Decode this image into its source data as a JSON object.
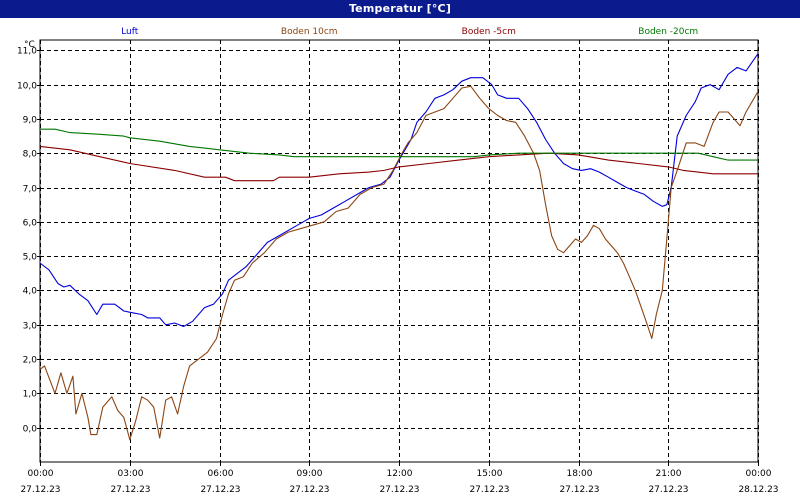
{
  "window": {
    "title": "Temperatur [°C]"
  },
  "chart_data": {
    "type": "line",
    "title": "Temperatur [°C]",
    "ylabel": "°C",
    "xlabel": "",
    "ylim": [
      -1.0,
      11.3
    ],
    "xlim": [
      0,
      24
    ],
    "grid": true,
    "legend_position": "top",
    "y_ticks": [
      0,
      1,
      2,
      3,
      4,
      5,
      6,
      7,
      8,
      9,
      10,
      11
    ],
    "y_tick_labels": [
      "0,0",
      "1,0",
      "2,0",
      "3,0",
      "4,0",
      "5,0",
      "6,0",
      "7,0",
      "8,0",
      "9,0",
      "10,0",
      "11,0"
    ],
    "x_ticks": [
      {
        "x": 0,
        "time": "00:00",
        "date": "27.12.23"
      },
      {
        "x": 3,
        "time": "03:00",
        "date": "27.12.23"
      },
      {
        "x": 6,
        "time": "06:00",
        "date": "27.12.23"
      },
      {
        "x": 9,
        "time": "09:00",
        "date": "27.12.23"
      },
      {
        "x": 12,
        "time": "12:00",
        "date": "27.12.23"
      },
      {
        "x": 15,
        "time": "15:00",
        "date": "27.12.23"
      },
      {
        "x": 18,
        "time": "18:00",
        "date": "27.12.23"
      },
      {
        "x": 21,
        "time": "21:00",
        "date": "27.12.23"
      },
      {
        "x": 24,
        "time": "00:00",
        "date": "28.12.23"
      }
    ],
    "series": [
      {
        "name": "Luft",
        "color": "#0000dd",
        "points": [
          [
            0,
            4.8
          ],
          [
            0.3,
            4.6
          ],
          [
            0.6,
            4.2
          ],
          [
            0.8,
            4.1
          ],
          [
            1.0,
            4.15
          ],
          [
            1.3,
            3.9
          ],
          [
            1.6,
            3.7
          ],
          [
            1.9,
            3.3
          ],
          [
            2.1,
            3.6
          ],
          [
            2.5,
            3.6
          ],
          [
            2.8,
            3.4
          ],
          [
            3.1,
            3.35
          ],
          [
            3.4,
            3.3
          ],
          [
            3.6,
            3.2
          ],
          [
            4.0,
            3.2
          ],
          [
            4.2,
            3.0
          ],
          [
            4.5,
            3.05
          ],
          [
            4.8,
            2.95
          ],
          [
            5.1,
            3.1
          ],
          [
            5.5,
            3.5
          ],
          [
            5.8,
            3.6
          ],
          [
            6.1,
            3.9
          ],
          [
            6.3,
            4.3
          ],
          [
            6.6,
            4.5
          ],
          [
            6.9,
            4.7
          ],
          [
            7.2,
            5.0
          ],
          [
            7.6,
            5.4
          ],
          [
            8.0,
            5.6
          ],
          [
            8.4,
            5.8
          ],
          [
            8.8,
            6.0
          ],
          [
            9.0,
            6.1
          ],
          [
            9.4,
            6.2
          ],
          [
            9.8,
            6.4
          ],
          [
            10.2,
            6.6
          ],
          [
            10.6,
            6.8
          ],
          [
            11.0,
            7.0
          ],
          [
            11.4,
            7.1
          ],
          [
            11.7,
            7.3
          ],
          [
            12.0,
            7.8
          ],
          [
            12.2,
            8.1
          ],
          [
            12.4,
            8.4
          ],
          [
            12.6,
            8.9
          ],
          [
            12.9,
            9.2
          ],
          [
            13.2,
            9.6
          ],
          [
            13.5,
            9.7
          ],
          [
            13.8,
            9.85
          ],
          [
            14.1,
            10.1
          ],
          [
            14.4,
            10.2
          ],
          [
            14.8,
            10.2
          ],
          [
            15.1,
            10.0
          ],
          [
            15.3,
            9.7
          ],
          [
            15.6,
            9.6
          ],
          [
            16.0,
            9.6
          ],
          [
            16.3,
            9.3
          ],
          [
            16.6,
            8.9
          ],
          [
            16.9,
            8.4
          ],
          [
            17.2,
            8.0
          ],
          [
            17.5,
            7.7
          ],
          [
            17.8,
            7.55
          ],
          [
            18.1,
            7.5
          ],
          [
            18.4,
            7.55
          ],
          [
            18.7,
            7.45
          ],
          [
            19.0,
            7.3
          ],
          [
            19.3,
            7.15
          ],
          [
            19.6,
            7.0
          ],
          [
            19.9,
            6.9
          ],
          [
            20.2,
            6.8
          ],
          [
            20.5,
            6.6
          ],
          [
            20.8,
            6.45
          ],
          [
            20.95,
            6.5
          ],
          [
            21.1,
            7.0
          ],
          [
            21.3,
            8.5
          ],
          [
            21.6,
            9.1
          ],
          [
            21.9,
            9.5
          ],
          [
            22.1,
            9.9
          ],
          [
            22.4,
            10.0
          ],
          [
            22.7,
            9.85
          ],
          [
            23.0,
            10.3
          ],
          [
            23.3,
            10.5
          ],
          [
            23.6,
            10.4
          ],
          [
            24,
            10.9
          ]
        ]
      },
      {
        "name": "Boden 10cm",
        "color": "#8b4513",
        "points": [
          [
            0,
            1.7
          ],
          [
            0.15,
            1.8
          ],
          [
            0.5,
            1.0
          ],
          [
            0.7,
            1.6
          ],
          [
            0.9,
            1.0
          ],
          [
            1.1,
            1.5
          ],
          [
            1.2,
            0.4
          ],
          [
            1.4,
            1.0
          ],
          [
            1.6,
            0.3
          ],
          [
            1.7,
            -0.2
          ],
          [
            1.9,
            -0.2
          ],
          [
            2.1,
            0.6
          ],
          [
            2.4,
            0.9
          ],
          [
            2.6,
            0.5
          ],
          [
            2.8,
            0.3
          ],
          [
            3.0,
            -0.35
          ],
          [
            3.2,
            0.2
          ],
          [
            3.4,
            0.9
          ],
          [
            3.6,
            0.8
          ],
          [
            3.8,
            0.6
          ],
          [
            4.0,
            -0.3
          ],
          [
            4.2,
            0.8
          ],
          [
            4.4,
            0.9
          ],
          [
            4.6,
            0.4
          ],
          [
            4.8,
            1.2
          ],
          [
            5.0,
            1.8
          ],
          [
            5.3,
            2.0
          ],
          [
            5.6,
            2.2
          ],
          [
            5.9,
            2.6
          ],
          [
            6.1,
            3.3
          ],
          [
            6.3,
            3.9
          ],
          [
            6.5,
            4.3
          ],
          [
            6.8,
            4.4
          ],
          [
            7.1,
            4.8
          ],
          [
            7.5,
            5.1
          ],
          [
            7.9,
            5.5
          ],
          [
            8.3,
            5.7
          ],
          [
            8.7,
            5.8
          ],
          [
            9.1,
            5.9
          ],
          [
            9.5,
            6.0
          ],
          [
            9.9,
            6.3
          ],
          [
            10.3,
            6.4
          ],
          [
            10.7,
            6.8
          ],
          [
            11.1,
            7.0
          ],
          [
            11.5,
            7.1
          ],
          [
            11.8,
            7.5
          ],
          [
            12.1,
            8.0
          ],
          [
            12.3,
            8.3
          ],
          [
            12.6,
            8.6
          ],
          [
            12.9,
            9.1
          ],
          [
            13.2,
            9.2
          ],
          [
            13.5,
            9.3
          ],
          [
            13.8,
            9.6
          ],
          [
            14.1,
            9.9
          ],
          [
            14.4,
            9.95
          ],
          [
            14.7,
            9.6
          ],
          [
            15.0,
            9.3
          ],
          [
            15.3,
            9.1
          ],
          [
            15.6,
            8.95
          ],
          [
            15.9,
            8.9
          ],
          [
            16.2,
            8.5
          ],
          [
            16.5,
            8.0
          ],
          [
            16.7,
            7.5
          ],
          [
            16.9,
            6.5
          ],
          [
            17.1,
            5.6
          ],
          [
            17.3,
            5.2
          ],
          [
            17.5,
            5.1
          ],
          [
            17.7,
            5.3
          ],
          [
            17.9,
            5.5
          ],
          [
            18.1,
            5.4
          ],
          [
            18.3,
            5.6
          ],
          [
            18.5,
            5.9
          ],
          [
            18.7,
            5.8
          ],
          [
            18.9,
            5.5
          ],
          [
            19.1,
            5.3
          ],
          [
            19.3,
            5.1
          ],
          [
            19.5,
            4.8
          ],
          [
            19.7,
            4.4
          ],
          [
            19.9,
            4.0
          ],
          [
            20.1,
            3.5
          ],
          [
            20.3,
            3.0
          ],
          [
            20.45,
            2.6
          ],
          [
            20.6,
            3.3
          ],
          [
            20.8,
            4.0
          ],
          [
            20.95,
            5.5
          ],
          [
            21.1,
            7.0
          ],
          [
            21.3,
            7.5
          ],
          [
            21.6,
            8.3
          ],
          [
            21.9,
            8.3
          ],
          [
            22.2,
            8.2
          ],
          [
            22.5,
            8.9
          ],
          [
            22.7,
            9.2
          ],
          [
            23.0,
            9.2
          ],
          [
            23.2,
            9.0
          ],
          [
            23.4,
            8.8
          ],
          [
            23.6,
            9.2
          ],
          [
            23.8,
            9.5
          ],
          [
            24,
            9.8
          ]
        ]
      },
      {
        "name": "Boden -5cm",
        "color": "#8b0000",
        "points": [
          [
            0,
            8.2
          ],
          [
            1.0,
            8.1
          ],
          [
            2.0,
            7.9
          ],
          [
            3.0,
            7.7
          ],
          [
            4.5,
            7.5
          ],
          [
            5.5,
            7.3
          ],
          [
            6.2,
            7.3
          ],
          [
            6.5,
            7.2
          ],
          [
            7.5,
            7.2
          ],
          [
            7.8,
            7.2
          ],
          [
            8.0,
            7.3
          ],
          [
            9.0,
            7.3
          ],
          [
            10.0,
            7.4
          ],
          [
            11.0,
            7.45
          ],
          [
            11.5,
            7.5
          ],
          [
            12.0,
            7.6
          ],
          [
            13.0,
            7.7
          ],
          [
            14.0,
            7.8
          ],
          [
            15.0,
            7.9
          ],
          [
            16.0,
            7.95
          ],
          [
            17.0,
            8.0
          ],
          [
            18.0,
            7.95
          ],
          [
            19.0,
            7.8
          ],
          [
            20.0,
            7.7
          ],
          [
            21.0,
            7.6
          ],
          [
            21.5,
            7.5
          ],
          [
            22.0,
            7.45
          ],
          [
            22.5,
            7.4
          ],
          [
            24,
            7.4
          ]
        ]
      },
      {
        "name": "Boden -20cm",
        "color": "#007700",
        "points": [
          [
            0,
            8.7
          ],
          [
            0.5,
            8.7
          ],
          [
            1.0,
            8.6
          ],
          [
            2.0,
            8.55
          ],
          [
            2.8,
            8.5
          ],
          [
            3.0,
            8.45
          ],
          [
            4.0,
            8.35
          ],
          [
            5.0,
            8.2
          ],
          [
            5.5,
            8.15
          ],
          [
            6.0,
            8.1
          ],
          [
            7.0,
            8.0
          ],
          [
            8.0,
            7.95
          ],
          [
            8.5,
            7.9
          ],
          [
            9.0,
            7.9
          ],
          [
            10.0,
            7.9
          ],
          [
            11.0,
            7.9
          ],
          [
            12.0,
            7.9
          ],
          [
            13.0,
            7.9
          ],
          [
            14.0,
            7.9
          ],
          [
            14.5,
            7.9
          ],
          [
            15.0,
            7.95
          ],
          [
            16.0,
            8.0
          ],
          [
            17.0,
            8.0
          ],
          [
            18.0,
            8.0
          ],
          [
            19.0,
            8.0
          ],
          [
            20.0,
            8.0
          ],
          [
            21.0,
            8.0
          ],
          [
            22.0,
            8.0
          ],
          [
            22.5,
            7.9
          ],
          [
            23.0,
            7.8
          ],
          [
            24,
            7.8
          ]
        ]
      }
    ]
  }
}
